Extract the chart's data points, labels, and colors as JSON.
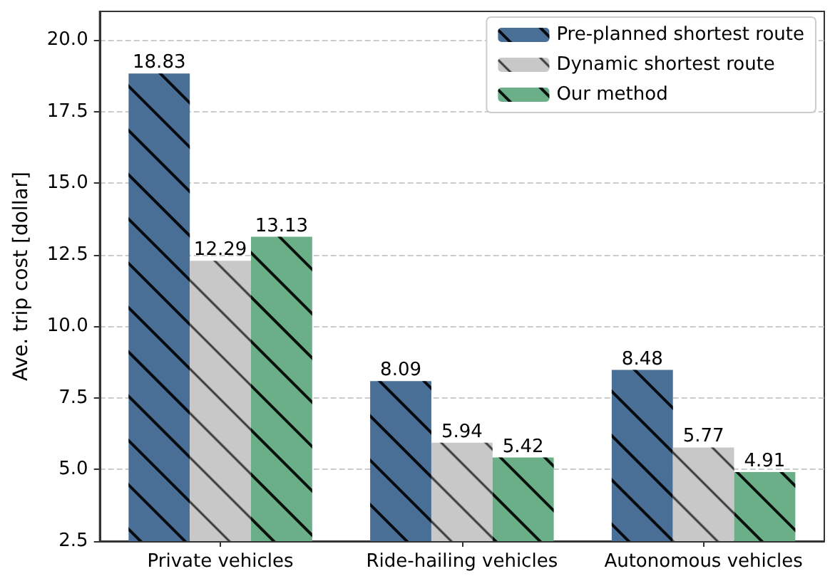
{
  "chart_data": {
    "type": "bar",
    "ylabel": "Ave. trip cost [dollar]",
    "categories": [
      "Private vehicles",
      "Ride-hailing vehicles",
      "Autonomous vehicles"
    ],
    "series": [
      {
        "name": "Pre-planned shortest route",
        "color": "#4a6f96",
        "values": [
          18.83,
          8.09,
          8.48
        ]
      },
      {
        "name": "Dynamic shortest route",
        "color": "#c8c8c8",
        "values": [
          12.29,
          5.94,
          5.77
        ]
      },
      {
        "name": "Our method",
        "color": "#6aaf87",
        "values": [
          13.13,
          5.42,
          4.91
        ]
      }
    ],
    "ylim": [
      2.5,
      21
    ],
    "yticks": [
      2.5,
      {
        "value": 5,
        "label": "5.0"
      },
      7.5,
      {
        "value": 10,
        "label": "10.0"
      },
      12.5,
      {
        "value": 15,
        "label": "15.0"
      },
      17.5,
      {
        "value": 20,
        "label": "20.0"
      }
    ],
    "grid": "y",
    "legend": "top right",
    "data_labels": true
  }
}
